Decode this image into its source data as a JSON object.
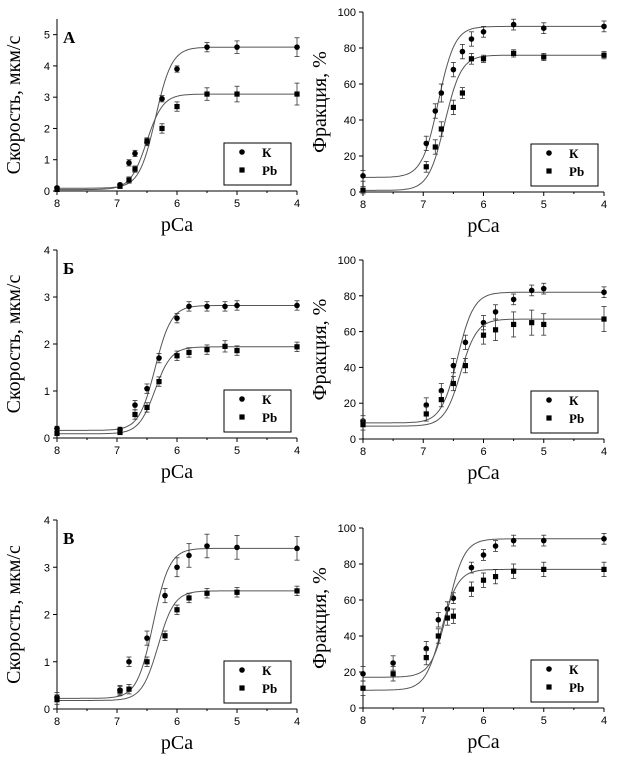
{
  "legend_labels": [
    "К",
    "Pb"
  ],
  "series_markers": [
    "circle",
    "square"
  ],
  "colors": {
    "marker": "#000000",
    "fit_line": "#555555",
    "axis": "#000000"
  },
  "chart_data": [
    {
      "type": "scatter",
      "panel_label": "А",
      "xlabel": "pCa",
      "ylabel": "Скорость, мкм/с",
      "xlim": [
        8,
        4
      ],
      "ylim": [
        0,
        5.5
      ],
      "x_ticks": [
        "8",
        "7",
        "6",
        "5",
        "4"
      ],
      "y_ticks": [
        "0",
        "1",
        "2",
        "3",
        "4",
        "5"
      ],
      "grid": false,
      "legend_position": "bottom-right",
      "series": [
        {
          "name": "К",
          "marker": "circle",
          "x": [
            8,
            6.95,
            6.8,
            6.7,
            6.5,
            6.25,
            6,
            5.5,
            5,
            4
          ],
          "y": [
            0.1,
            0.2,
            0.9,
            1.2,
            1.55,
            2.95,
            3.9,
            4.6,
            4.6,
            4.6
          ],
          "err": [
            0.05,
            0.05,
            0.1,
            0.1,
            0.1,
            0.1,
            0.1,
            0.15,
            0.2,
            0.3
          ]
        },
        {
          "name": "Pb",
          "marker": "square",
          "x": [
            8,
            6.95,
            6.8,
            6.7,
            6.5,
            6.25,
            6,
            5.5,
            5,
            4
          ],
          "y": [
            0.05,
            0.15,
            0.35,
            0.7,
            1.6,
            2.0,
            2.7,
            3.1,
            3.1,
            3.1
          ],
          "err": [
            0.05,
            0.05,
            0.1,
            0.1,
            0.1,
            0.15,
            0.15,
            0.2,
            0.25,
            0.35
          ]
        }
      ]
    },
    {
      "type": "scatter",
      "panel_label": "",
      "xlabel": "pCa",
      "ylabel": "Фракция, %",
      "xlim": [
        8,
        4
      ],
      "ylim": [
        0,
        100
      ],
      "x_ticks": [
        "8",
        "7",
        "6",
        "5",
        "4"
      ],
      "y_ticks": [
        "0",
        "20",
        "40",
        "60",
        "80",
        "100"
      ],
      "grid": false,
      "legend_position": "bottom-right",
      "series": [
        {
          "name": "К",
          "marker": "circle",
          "x": [
            8,
            6.95,
            6.8,
            6.7,
            6.5,
            6.35,
            6.2,
            6,
            5.5,
            5,
            4
          ],
          "y": [
            9,
            27,
            45,
            55,
            68,
            78,
            85,
            89,
            93,
            91,
            92
          ],
          "err": [
            3,
            4,
            4,
            5,
            4,
            4,
            4,
            3,
            3,
            3,
            3
          ]
        },
        {
          "name": "Pb",
          "marker": "square",
          "x": [
            8,
            6.95,
            6.8,
            6.7,
            6.5,
            6.35,
            6.2,
            6,
            5.5,
            5,
            4
          ],
          "y": [
            1,
            14,
            25,
            35,
            47,
            55,
            74,
            74,
            77,
            75,
            76
          ],
          "err": [
            2,
            3,
            4,
            4,
            4,
            3,
            3,
            2,
            2,
            2,
            2
          ]
        }
      ]
    },
    {
      "type": "scatter",
      "panel_label": "Б",
      "xlabel": "pCa",
      "ylabel": "Скорость, мкм/с",
      "xlim": [
        8,
        4
      ],
      "ylim": [
        0,
        4
      ],
      "x_ticks": [
        "8",
        "7",
        "6",
        "5",
        "4"
      ],
      "y_ticks": [
        "0",
        "1",
        "2",
        "3",
        "4"
      ],
      "grid": false,
      "legend_position": "bottom-right",
      "series": [
        {
          "name": "К",
          "marker": "circle",
          "x": [
            8,
            6.95,
            6.7,
            6.5,
            6.3,
            6,
            5.8,
            5.5,
            5.2,
            5,
            4
          ],
          "y": [
            0.2,
            0.18,
            0.7,
            1.05,
            1.7,
            2.55,
            2.8,
            2.8,
            2.8,
            2.82,
            2.82
          ],
          "err": [
            0.05,
            0.05,
            0.1,
            0.1,
            0.1,
            0.1,
            0.1,
            0.1,
            0.1,
            0.1,
            0.1
          ]
        },
        {
          "name": "Pb",
          "marker": "square",
          "x": [
            8,
            6.95,
            6.7,
            6.5,
            6.3,
            6,
            5.8,
            5.5,
            5.2,
            5,
            4
          ],
          "y": [
            0.1,
            0.12,
            0.5,
            0.65,
            1.2,
            1.75,
            1.82,
            1.88,
            1.95,
            1.86,
            1.94
          ],
          "err": [
            0.05,
            0.05,
            0.1,
            0.1,
            0.1,
            0.1,
            0.1,
            0.1,
            0.12,
            0.1,
            0.1
          ]
        }
      ]
    },
    {
      "type": "scatter",
      "panel_label": "",
      "xlabel": "pCa",
      "ylabel": "Фракция, %",
      "xlim": [
        8,
        4
      ],
      "ylim": [
        0,
        100
      ],
      "x_ticks": [
        "8",
        "7",
        "6",
        "5",
        "4"
      ],
      "y_ticks": [
        "0",
        "20",
        "40",
        "60",
        "80",
        "100"
      ],
      "grid": false,
      "legend_position": "bottom-right",
      "series": [
        {
          "name": "К",
          "marker": "circle",
          "x": [
            8,
            6.95,
            6.7,
            6.5,
            6.3,
            6,
            5.8,
            5.5,
            5.2,
            5,
            4
          ],
          "y": [
            10,
            19,
            27,
            41,
            54,
            65,
            71,
            78,
            83,
            84,
            82
          ],
          "err": [
            3,
            4,
            4,
            4,
            4,
            4,
            4,
            3,
            3,
            3,
            3
          ]
        },
        {
          "name": "Pb",
          "marker": "square",
          "x": [
            8,
            6.95,
            6.7,
            6.5,
            6.3,
            6,
            5.8,
            5.5,
            5.2,
            5,
            4
          ],
          "y": [
            8,
            14,
            22,
            31,
            41,
            58,
            61,
            64,
            65,
            64,
            67
          ],
          "err": [
            3,
            4,
            4,
            4,
            4,
            5,
            6,
            7,
            7,
            6,
            7
          ]
        }
      ]
    },
    {
      "type": "scatter",
      "panel_label": "В",
      "xlabel": "pCa",
      "ylabel": "Скорость, мкм/с",
      "xlim": [
        8,
        4
      ],
      "ylim": [
        0,
        4
      ],
      "x_ticks": [
        "8",
        "7",
        "6",
        "5",
        "4"
      ],
      "y_ticks": [
        "0",
        "1",
        "2",
        "3",
        "4"
      ],
      "grid": false,
      "legend_position": "bottom-right",
      "series": [
        {
          "name": "К",
          "marker": "circle",
          "x": [
            8,
            6.95,
            6.8,
            6.5,
            6.2,
            6,
            5.8,
            5.5,
            5,
            4
          ],
          "y": [
            0.25,
            0.4,
            1.0,
            1.5,
            2.4,
            3.0,
            3.25,
            3.45,
            3.42,
            3.4
          ],
          "err": [
            0.1,
            0.1,
            0.1,
            0.15,
            0.15,
            0.2,
            0.25,
            0.25,
            0.25,
            0.25
          ]
        },
        {
          "name": "Pb",
          "marker": "square",
          "x": [
            8,
            6.95,
            6.8,
            6.5,
            6.2,
            6,
            5.8,
            5.5,
            5,
            4
          ],
          "y": [
            0.2,
            0.38,
            0.42,
            1.0,
            1.55,
            2.1,
            2.35,
            2.45,
            2.47,
            2.5
          ],
          "err": [
            0.1,
            0.1,
            0.1,
            0.1,
            0.1,
            0.1,
            0.1,
            0.1,
            0.1,
            0.1
          ]
        }
      ]
    },
    {
      "type": "scatter",
      "panel_label": "",
      "xlabel": "pCa",
      "ylabel": "Фракция, %",
      "xlim": [
        8,
        4
      ],
      "ylim": [
        0,
        100
      ],
      "x_ticks": [
        "8",
        "7",
        "6",
        "5",
        "4"
      ],
      "y_ticks": [
        "0",
        "20",
        "40",
        "60",
        "80",
        "100"
      ],
      "grid": false,
      "legend_position": "bottom-right",
      "series": [
        {
          "name": "К",
          "marker": "circle",
          "x": [
            8,
            7.5,
            6.95,
            6.75,
            6.6,
            6.5,
            6.2,
            6,
            5.8,
            5.5,
            5,
            4
          ],
          "y": [
            19,
            25,
            33,
            49,
            55,
            61,
            78,
            85,
            90,
            93,
            93,
            94
          ],
          "err": [
            4,
            4,
            4,
            4,
            4,
            3,
            3,
            3,
            3,
            3,
            3,
            3
          ]
        },
        {
          "name": "Pb",
          "marker": "square",
          "x": [
            8,
            7.5,
            6.95,
            6.75,
            6.6,
            6.5,
            6.2,
            6,
            5.8,
            5.5,
            5,
            4
          ],
          "y": [
            11,
            19,
            28,
            40,
            50,
            51,
            66,
            71,
            73,
            76,
            77,
            77
          ],
          "err": [
            4,
            4,
            4,
            4,
            4,
            4,
            4,
            4,
            4,
            4,
            4,
            4
          ]
        }
      ]
    }
  ]
}
